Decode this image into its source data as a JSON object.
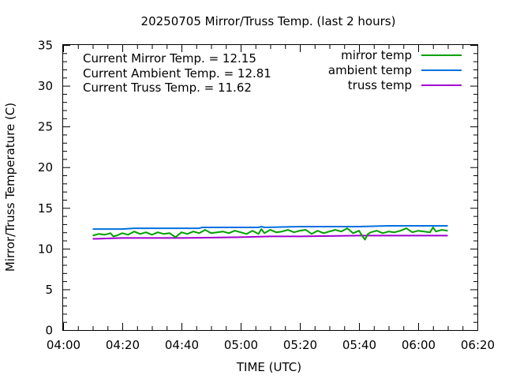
{
  "chart_data": {
    "type": "line",
    "title": "20250705 Mirror/Truss Temp. (last 2 hours)",
    "xlabel": "TIME (UTC)",
    "ylabel": "Mirror/Truss Temperature (C)",
    "xlim": [
      "04:00",
      "06:20"
    ],
    "ylim": [
      0,
      35
    ],
    "x_ticks": [
      "04:00",
      "04:20",
      "04:40",
      "05:00",
      "05:20",
      "05:40",
      "06:00",
      "06:20"
    ],
    "y_ticks": [
      0,
      5,
      10,
      15,
      20,
      25,
      30,
      35
    ],
    "grid": false,
    "legend_position": "top-right",
    "annotations": [
      "Current Mirror Temp. = 12.15",
      "Current Ambient Temp. = 12.81",
      "Current Truss Temp. = 11.62"
    ],
    "series": [
      {
        "name": "mirror temp",
        "color": "#00a000",
        "x": [
          "04:10",
          "04:12",
          "04:14",
          "04:16",
          "04:17",
          "04:18",
          "04:20",
          "04:22",
          "04:24",
          "04:26",
          "04:28",
          "04:30",
          "04:32",
          "04:34",
          "04:36",
          "04:38",
          "04:40",
          "04:42",
          "04:44",
          "04:46",
          "04:48",
          "04:50",
          "04:52",
          "04:54",
          "04:56",
          "04:58",
          "05:00",
          "05:02",
          "05:04",
          "05:06",
          "05:07",
          "05:08",
          "05:10",
          "05:12",
          "05:14",
          "05:16",
          "05:18",
          "05:20",
          "05:22",
          "05:24",
          "05:26",
          "05:28",
          "05:30",
          "05:32",
          "05:34",
          "05:36",
          "05:38",
          "05:40",
          "05:41",
          "05:42",
          "05:43",
          "05:44",
          "05:46",
          "05:48",
          "05:50",
          "05:52",
          "05:54",
          "05:56",
          "05:58",
          "06:00",
          "06:02",
          "06:04",
          "06:05",
          "06:06",
          "06:08",
          "06:10"
        ],
        "values": [
          11.6,
          11.8,
          11.7,
          11.9,
          11.5,
          11.6,
          11.9,
          11.7,
          12.1,
          11.8,
          12.0,
          11.7,
          12.0,
          11.8,
          11.9,
          11.4,
          12.0,
          11.8,
          12.1,
          11.9,
          12.3,
          11.9,
          12.0,
          12.1,
          11.9,
          12.2,
          12.0,
          11.8,
          12.2,
          11.8,
          12.4,
          11.9,
          12.3,
          12.0,
          12.1,
          12.3,
          12.0,
          12.2,
          12.3,
          11.8,
          12.2,
          11.9,
          12.1,
          12.3,
          12.1,
          12.5,
          11.9,
          12.2,
          11.6,
          11.1,
          11.8,
          12.0,
          12.2,
          11.9,
          12.1,
          12.0,
          12.2,
          12.5,
          12.0,
          12.2,
          12.1,
          12.0,
          12.6,
          12.1,
          12.3,
          12.2
        ]
      },
      {
        "name": "ambient temp",
        "color": "#0070e0",
        "x": [
          "04:10",
          "04:20",
          "04:24",
          "04:40",
          "04:46",
          "04:47",
          "04:52",
          "05:00",
          "05:06",
          "05:07",
          "05:08",
          "05:20",
          "05:40",
          "05:50",
          "06:00",
          "06:10"
        ],
        "values": [
          12.4,
          12.4,
          12.5,
          12.5,
          12.5,
          12.6,
          12.6,
          12.6,
          12.6,
          12.7,
          12.6,
          12.7,
          12.7,
          12.8,
          12.8,
          12.8
        ]
      },
      {
        "name": "truss temp",
        "color": "#a000d0",
        "x": [
          "04:10",
          "04:20",
          "04:40",
          "05:00",
          "05:10",
          "05:20",
          "05:40",
          "06:00",
          "06:10"
        ],
        "values": [
          11.2,
          11.3,
          11.3,
          11.4,
          11.5,
          11.5,
          11.6,
          11.6,
          11.6
        ]
      }
    ]
  }
}
